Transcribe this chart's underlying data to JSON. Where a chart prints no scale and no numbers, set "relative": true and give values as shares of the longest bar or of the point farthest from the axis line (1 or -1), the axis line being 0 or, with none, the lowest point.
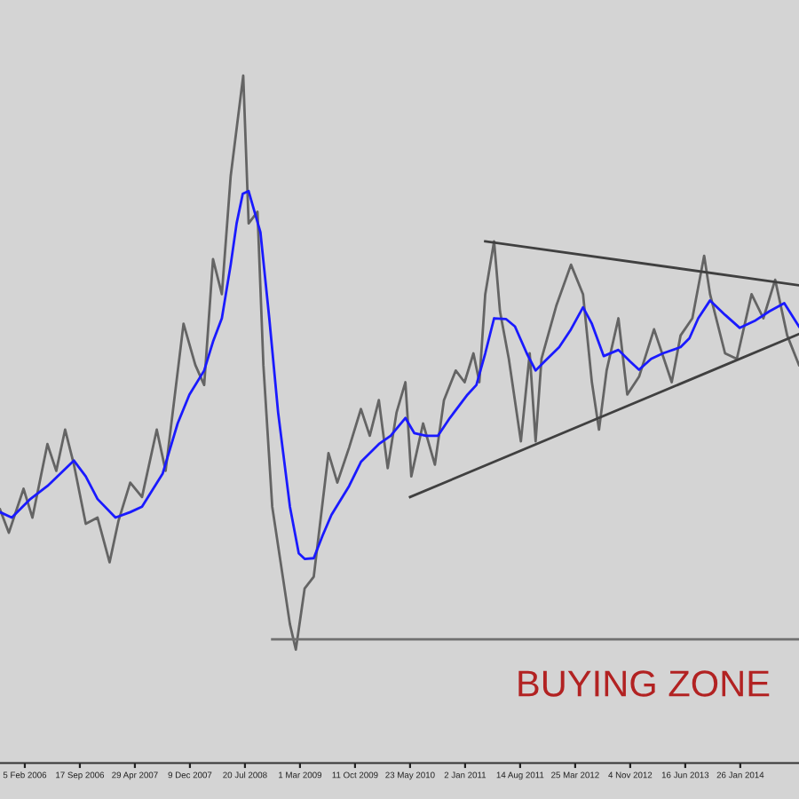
{
  "chart_data": {
    "type": "line",
    "relative": true,
    "grid": false,
    "marker": "none",
    "line_style": "solid",
    "annotations": [
      "BUYING ZONE"
    ],
    "xlim": [
      "2005-10-27",
      "2014-09-22"
    ],
    "xticks": [
      {
        "value": "2006-02-05",
        "label": "5 Feb 2006"
      },
      {
        "value": "2006-09-17",
        "label": "17 Sep 2006"
      },
      {
        "value": "2007-04-29",
        "label": "29 Apr 2007"
      },
      {
        "value": "2007-12-09",
        "label": "9 Dec 2007"
      },
      {
        "value": "2008-07-20",
        "label": "20 Jul 2008"
      },
      {
        "value": "2009-03-01",
        "label": "1 Mar 2009"
      },
      {
        "value": "2009-10-11",
        "label": "11 Oct 2009"
      },
      {
        "value": "2010-05-23",
        "label": "23 May 2010"
      },
      {
        "value": "2011-01-02",
        "label": "2 Jan 2011"
      },
      {
        "value": "2011-08-14",
        "label": "14 Aug 2011"
      },
      {
        "value": "2012-03-25",
        "label": "25 Mar 2012"
      },
      {
        "value": "2012-11-04",
        "label": "4 Nov 2012"
      },
      {
        "value": "2013-06-16",
        "label": "16 Jun 2013"
      },
      {
        "value": "2014-01-26",
        "label": "26 Jan 2014"
      }
    ],
    "series": [
      {
        "color": "#646464",
        "x": [
          "2005-10-27",
          "2005-12-02",
          "2006-01-31",
          "2006-03-08",
          "2006-05-08",
          "2006-06-13",
          "2006-07-19",
          "2006-08-24",
          "2006-10-11",
          "2006-11-28",
          "2007-01-16",
          "2007-02-21",
          "2007-04-10",
          "2007-05-28",
          "2007-07-27",
          "2007-09-01",
          "2007-11-13",
          "2007-12-31",
          "2008-02-05",
          "2008-03-12",
          "2008-04-17",
          "2008-05-23",
          "2008-07-13",
          "2008-08-04",
          "2008-09-09",
          "2008-10-03",
          "2008-11-08",
          "2008-12-21",
          "2009-01-19",
          "2009-02-12",
          "2009-03-20",
          "2009-04-26",
          "2009-06-25",
          "2009-07-31",
          "2009-09-17",
          "2009-11-04",
          "2009-12-10",
          "2010-01-16",
          "2010-02-21",
          "2010-03-29",
          "2010-05-04",
          "2010-05-28",
          "2010-07-15",
          "2010-09-01",
          "2010-10-08",
          "2010-11-25",
          "2010-12-31",
          "2011-02-05",
          "2011-03-01",
          "2011-03-25",
          "2011-04-30",
          "2011-05-24",
          "2011-06-29",
          "2011-08-17",
          "2011-09-22",
          "2011-10-16",
          "2011-11-09",
          "2012-01-08",
          "2012-03-08",
          "2012-04-26",
          "2012-06-01",
          "2012-06-30",
          "2012-07-31",
          "2012-09-17",
          "2012-10-23",
          "2012-12-10",
          "2013-02-09",
          "2013-04-22",
          "2013-05-28",
          "2013-07-15",
          "2013-09-01",
          "2013-09-25",
          "2013-11-25",
          "2014-01-12",
          "2014-03-13",
          "2014-04-30",
          "2014-06-17",
          "2014-08-05",
          "2014-09-22"
        ],
        "values": [
          0.369,
          0.335,
          0.399,
          0.357,
          0.464,
          0.425,
          0.485,
          0.434,
          0.348,
          0.357,
          0.292,
          0.352,
          0.408,
          0.387,
          0.485,
          0.425,
          0.639,
          0.579,
          0.55,
          0.733,
          0.682,
          0.854,
          1.0,
          0.785,
          0.802,
          0.579,
          0.373,
          0.271,
          0.202,
          0.165,
          0.254,
          0.271,
          0.451,
          0.408,
          0.459,
          0.515,
          0.476,
          0.528,
          0.429,
          0.51,
          0.554,
          0.417,
          0.494,
          0.434,
          0.528,
          0.571,
          0.554,
          0.596,
          0.554,
          0.682,
          0.759,
          0.657,
          0.588,
          0.468,
          0.596,
          0.468,
          0.588,
          0.665,
          0.725,
          0.682,
          0.554,
          0.485,
          0.571,
          0.647,
          0.536,
          0.562,
          0.631,
          0.554,
          0.622,
          0.647,
          0.738,
          0.682,
          0.596,
          0.588,
          0.682,
          0.647,
          0.703,
          0.622,
          0.579
        ]
      },
      {
        "color": "#1a1aff",
        "x": [
          "2005-10-27",
          "2005-12-14",
          "2006-02-24",
          "2006-05-08",
          "2006-08-24",
          "2006-10-11",
          "2006-11-28",
          "2007-02-09",
          "2007-04-10",
          "2007-05-28",
          "2007-08-20",
          "2007-10-20",
          "2007-12-07",
          "2008-02-05",
          "2008-03-12",
          "2008-04-17",
          "2008-05-23",
          "2008-06-16",
          "2008-07-11",
          "2008-08-04",
          "2008-09-21",
          "2008-10-27",
          "2008-12-02",
          "2009-01-19",
          "2009-02-24",
          "2009-03-20",
          "2009-04-26",
          "2009-06-01",
          "2009-07-07",
          "2009-09-17",
          "2009-11-04",
          "2010-01-16",
          "2010-03-05",
          "2010-05-04",
          "2010-06-09",
          "2010-07-27",
          "2010-09-13",
          "2010-11-01",
          "2011-01-12",
          "2011-02-17",
          "2011-03-25",
          "2011-04-30",
          "2011-06-17",
          "2011-07-24",
          "2011-09-10",
          "2011-10-16",
          "2011-11-21",
          "2012-01-20",
          "2012-03-08",
          "2012-04-26",
          "2012-06-01",
          "2012-07-19",
          "2012-09-17",
          "2012-11-04",
          "2012-12-10",
          "2013-01-28",
          "2013-03-17",
          "2013-05-28",
          "2013-07-03",
          "2013-08-08",
          "2013-09-25",
          "2013-11-25",
          "2014-01-24",
          "2014-03-25",
          "2014-05-24",
          "2014-07-24",
          "2014-09-22"
        ],
        "values": [
          0.365,
          0.357,
          0.383,
          0.403,
          0.44,
          0.417,
          0.384,
          0.357,
          0.365,
          0.373,
          0.421,
          0.494,
          0.536,
          0.571,
          0.613,
          0.647,
          0.725,
          0.785,
          0.828,
          0.832,
          0.772,
          0.647,
          0.51,
          0.373,
          0.305,
          0.297,
          0.298,
          0.331,
          0.361,
          0.403,
          0.438,
          0.464,
          0.476,
          0.502,
          0.48,
          0.476,
          0.476,
          0.502,
          0.536,
          0.55,
          0.596,
          0.647,
          0.646,
          0.635,
          0.596,
          0.571,
          0.584,
          0.605,
          0.631,
          0.663,
          0.639,
          0.592,
          0.601,
          0.584,
          0.572,
          0.588,
          0.596,
          0.605,
          0.618,
          0.647,
          0.673,
          0.652,
          0.633,
          0.643,
          0.657,
          0.669,
          0.635
        ]
      },
      {
        "color": "#404040",
        "x": [
          "2011-03-25",
          "2014-09-22"
        ],
        "values": [
          0.759,
          0.695
        ]
      },
      {
        "color": "#404040",
        "x": [
          "2010-05-23",
          "2014-09-22"
        ],
        "values": [
          0.387,
          0.624
        ]
      },
      {
        "color": "#707070",
        "x": [
          "2008-11-08",
          "2014-09-22"
        ],
        "values": [
          0.18,
          0.18
        ]
      }
    ]
  }
}
